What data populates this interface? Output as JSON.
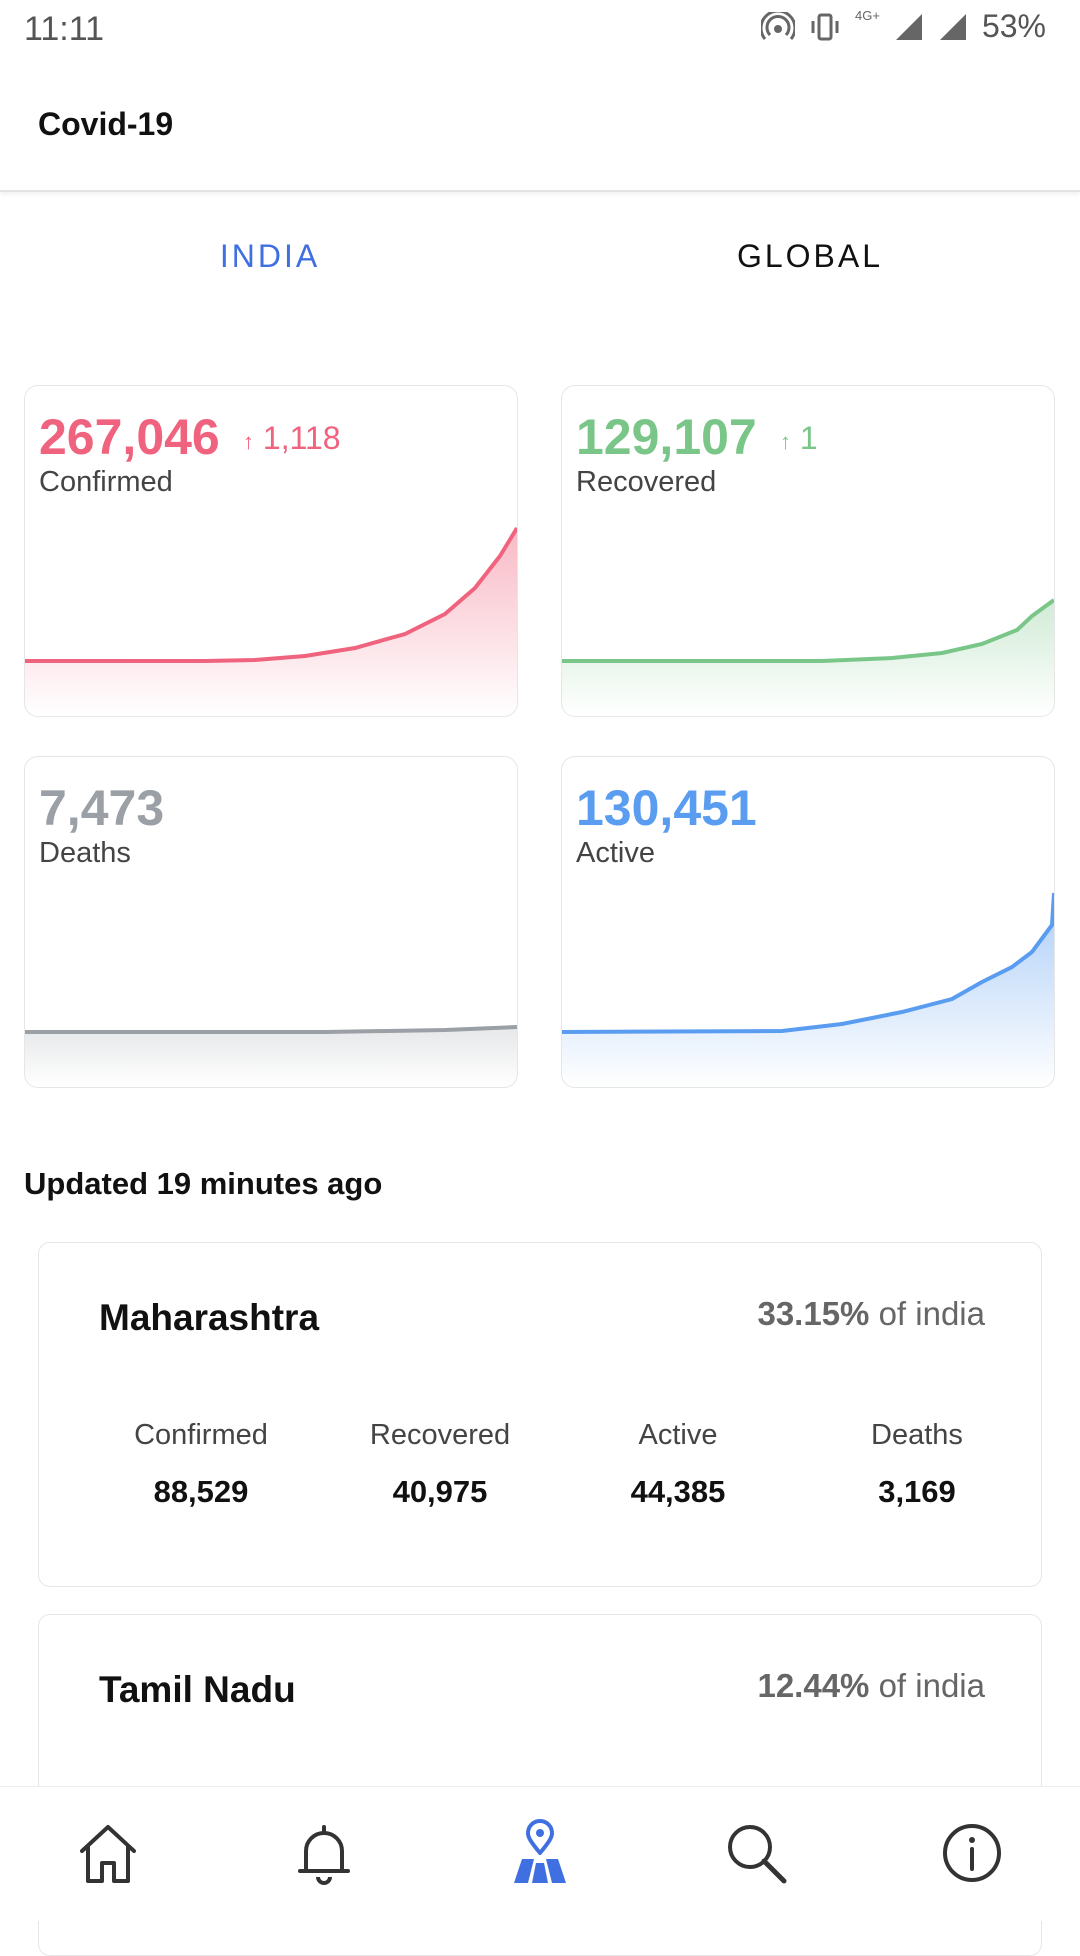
{
  "status": {
    "time": "11:11",
    "battery": "53%",
    "network": "4G+"
  },
  "app": {
    "title": "Covid-19"
  },
  "tabs": [
    {
      "label": "INDIA",
      "active": true
    },
    {
      "label": "GLOBAL",
      "active": false
    }
  ],
  "cards": {
    "confirmed": {
      "value": "267,046",
      "delta": "1,118",
      "label": "Confirmed",
      "color": "#f0637e"
    },
    "recovered": {
      "value": "129,107",
      "delta": "1",
      "label": "Recovered",
      "color": "#7ac689"
    },
    "deaths": {
      "value": "7,473",
      "label": "Deaths",
      "color": "#9aa0a6"
    },
    "active": {
      "value": "130,451",
      "label": "Active",
      "color": "#5a9df0"
    }
  },
  "updated": "Updated 19 minutes ago",
  "states": [
    {
      "name": "Maharashtra",
      "percent": "33.15%",
      "percent_suffix": "of india",
      "stats": [
        {
          "label": "Confirmed",
          "value": "88,529"
        },
        {
          "label": "Recovered",
          "value": "40,975"
        },
        {
          "label": "Active",
          "value": "44,385"
        },
        {
          "label": "Deaths",
          "value": "3,169"
        }
      ]
    },
    {
      "name": "Tamil Nadu",
      "percent": "12.44%",
      "percent_suffix": "of india"
    }
  ],
  "nav": [
    {
      "icon": "home-icon",
      "active": false
    },
    {
      "icon": "bell-icon",
      "active": false
    },
    {
      "icon": "map-pin-icon",
      "active": true
    },
    {
      "icon": "search-icon",
      "active": false
    },
    {
      "icon": "info-icon",
      "active": false
    }
  ],
  "colors": {
    "accent": "#3f6fe0"
  }
}
